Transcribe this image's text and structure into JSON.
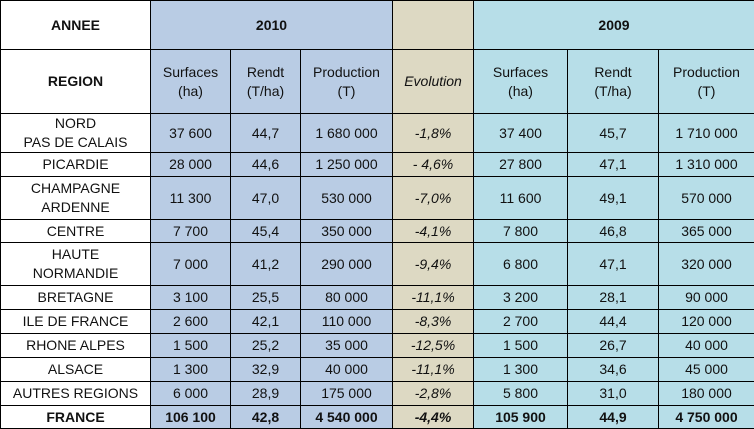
{
  "header": {
    "annee_label": "ANNEE",
    "region_label": "REGION",
    "year_2010": "2010",
    "year_2009": "2009",
    "col_surfaces": [
      "Surfaces",
      "(ha)"
    ],
    "col_rendt": [
      "Rendt",
      "(T/ha)"
    ],
    "col_production": [
      "Production",
      "(T)"
    ],
    "col_evolution": "Evolution"
  },
  "rows": [
    {
      "region": [
        "NORD",
        "PAS DE CALAIS"
      ],
      "s2010": "37 600",
      "r2010": "44,7",
      "p2010": "1 680 000",
      "evo": "-1,8%",
      "s2009": "37 400",
      "r2009": "45,7",
      "p2009": "1 710 000"
    },
    {
      "region": [
        "PICARDIE"
      ],
      "s2010": "28 000",
      "r2010": "44,6",
      "p2010": "1 250 000",
      "evo": "- 4,6%",
      "s2009": "27 800",
      "r2009": "47,1",
      "p2009": "1 310 000"
    },
    {
      "region": [
        "CHAMPAGNE",
        "ARDENNE"
      ],
      "s2010": "11 300",
      "r2010": "47,0",
      "p2010": "530 000",
      "evo": "-7,0%",
      "s2009": "11 600",
      "r2009": "49,1",
      "p2009": "570 000"
    },
    {
      "region": [
        "CENTRE"
      ],
      "s2010": "7 700",
      "r2010": "45,4",
      "p2010": "350 000",
      "evo": "-4,1%",
      "s2009": "7 800",
      "r2009": "46,8",
      "p2009": "365 000"
    },
    {
      "region": [
        "HAUTE",
        "NORMANDIE"
      ],
      "s2010": "7 000",
      "r2010": "41,2",
      "p2010": "290 000",
      "evo": "-9,4%",
      "s2009": "6 800",
      "r2009": "47,1",
      "p2009": "320 000"
    },
    {
      "region": [
        "BRETAGNE"
      ],
      "s2010": "3 100",
      "r2010": "25,5",
      "p2010": "80 000",
      "evo": "-11,1%",
      "s2009": "3 200",
      "r2009": "28,1",
      "p2009": "90 000"
    },
    {
      "region": [
        "ILE DE FRANCE"
      ],
      "s2010": "2 600",
      "r2010": "42,1",
      "p2010": "110 000",
      "evo": "-8,3%",
      "s2009": "2 700",
      "r2009": "44,4",
      "p2009": "120 000"
    },
    {
      "region": [
        "RHONE ALPES"
      ],
      "s2010": "1 500",
      "r2010": "25,2",
      "p2010": "35 000",
      "evo": "-12,5%",
      "s2009": "1 500",
      "r2009": "26,7",
      "p2009": "40 000"
    },
    {
      "region": [
        "ALSACE"
      ],
      "s2010": "1 300",
      "r2010": "32,9",
      "p2010": "40 000",
      "evo": "-11,1%",
      "s2009": "1 300",
      "r2009": "34,6",
      "p2009": "45 000"
    },
    {
      "region": [
        "AUTRES REGIONS"
      ],
      "s2010": "6 000",
      "r2010": "28,9",
      "p2010": "175 000",
      "evo": "-2,8%",
      "s2009": "5 800",
      "r2009": "31,0",
      "p2009": "180 000"
    }
  ],
  "total": {
    "region": "FRANCE",
    "s2010": "106 100",
    "r2010": "42,8",
    "p2010": "4 540 000",
    "evo": "-4,4%",
    "s2009": "105 900",
    "r2009": "44,9",
    "p2009": "4 750 000"
  },
  "colors": {
    "col2010": "#b9cce4",
    "evolution": "#ddd9c3",
    "col2009": "#b7dee8"
  }
}
